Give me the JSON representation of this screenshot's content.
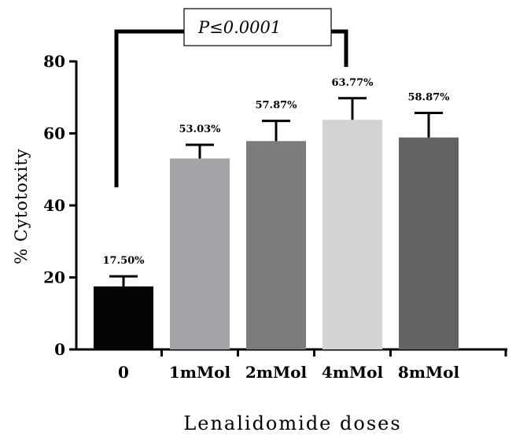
{
  "chart_data": {
    "type": "bar",
    "title": "",
    "xlabel": "Lenalidomide doses",
    "ylabel": "% Cytotoxity",
    "ylim": [
      0,
      80
    ],
    "yticks": [
      0,
      20,
      40,
      60,
      80
    ],
    "categories": [
      "0",
      "1mMol",
      "2mMol",
      "4mMol",
      "8mMol"
    ],
    "values": [
      17.5,
      53.03,
      57.87,
      63.77,
      58.87
    ],
    "errors": [
      2.8,
      3.8,
      5.6,
      6.0,
      6.8
    ],
    "data_labels": [
      "17.50%",
      "53.03%",
      "57.87%",
      "63.77%",
      "58.87%"
    ],
    "bar_colors": [
      "#050505",
      "#a3a3a8",
      "#7c7c7c",
      "#d3d3d3",
      "#636363"
    ],
    "grid": false,
    "annotation": {
      "text": "P≤0.0001",
      "from_category": "0",
      "to_category": "4mMol"
    }
  }
}
